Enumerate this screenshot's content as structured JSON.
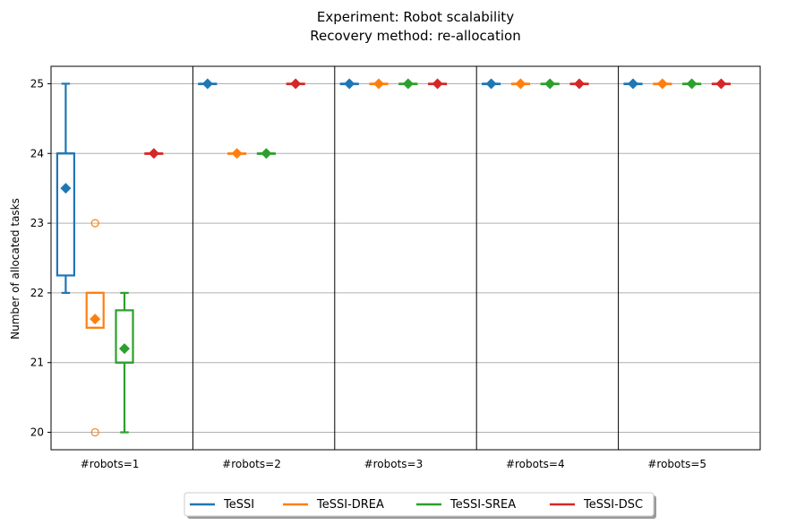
{
  "chart_data": {
    "type": "box",
    "title": "Experiment: Robot scalability",
    "subtitle": "Recovery method: re-allocation",
    "ylabel": "Number of allocated tasks",
    "xlabel": "",
    "ylim": [
      19.75,
      25.25
    ],
    "yticks": [
      20,
      21,
      22,
      23,
      24,
      25
    ],
    "grid": "y",
    "legend_position": "bottom-center",
    "groups": [
      "#robots=1",
      "#robots=2",
      "#robots=3",
      "#robots=4",
      "#robots=5"
    ],
    "series": [
      {
        "name": "TeSSI",
        "color": "#1f77b4",
        "stats": [
          {
            "whislo": 22,
            "q1": 22.25,
            "med": 24,
            "q3": 24,
            "whishi": 25,
            "mean": 23.5,
            "fliers": []
          },
          {
            "whislo": 25,
            "q1": 25,
            "med": 25,
            "q3": 25,
            "whishi": 25,
            "mean": 25,
            "fliers": []
          },
          {
            "whislo": 25,
            "q1": 25,
            "med": 25,
            "q3": 25,
            "whishi": 25,
            "mean": 25,
            "fliers": []
          },
          {
            "whislo": 25,
            "q1": 25,
            "med": 25,
            "q3": 25,
            "whishi": 25,
            "mean": 25,
            "fliers": []
          },
          {
            "whislo": 25,
            "q1": 25,
            "med": 25,
            "q3": 25,
            "whishi": 25,
            "mean": 25,
            "fliers": []
          }
        ]
      },
      {
        "name": "TeSSI-DREA",
        "color": "#ff7f0e",
        "stats": [
          {
            "whislo": 21.5,
            "q1": 21.5,
            "med": 22,
            "q3": 22,
            "whishi": 22,
            "mean": 21.625,
            "fliers": [
              23,
              20
            ]
          },
          {
            "whislo": 24,
            "q1": 24,
            "med": 24,
            "q3": 24,
            "whishi": 24,
            "mean": 24,
            "fliers": []
          },
          {
            "whislo": 25,
            "q1": 25,
            "med": 25,
            "q3": 25,
            "whishi": 25,
            "mean": 25,
            "fliers": []
          },
          {
            "whislo": 25,
            "q1": 25,
            "med": 25,
            "q3": 25,
            "whishi": 25,
            "mean": 25,
            "fliers": []
          },
          {
            "whislo": 25,
            "q1": 25,
            "med": 25,
            "q3": 25,
            "whishi": 25,
            "mean": 25,
            "fliers": []
          }
        ]
      },
      {
        "name": "TeSSI-SREA",
        "color": "#2ca02c",
        "stats": [
          {
            "whislo": 20,
            "q1": 21,
            "med": 21,
            "q3": 21.75,
            "whishi": 22,
            "mean": 21.2,
            "fliers": []
          },
          {
            "whislo": 24,
            "q1": 24,
            "med": 24,
            "q3": 24,
            "whishi": 24,
            "mean": 24,
            "fliers": []
          },
          {
            "whislo": 25,
            "q1": 25,
            "med": 25,
            "q3": 25,
            "whishi": 25,
            "mean": 25,
            "fliers": []
          },
          {
            "whislo": 25,
            "q1": 25,
            "med": 25,
            "q3": 25,
            "whishi": 25,
            "mean": 25,
            "fliers": []
          },
          {
            "whislo": 25,
            "q1": 25,
            "med": 25,
            "q3": 25,
            "whishi": 25,
            "mean": 25,
            "fliers": []
          }
        ]
      },
      {
        "name": "TeSSI-DSC",
        "color": "#d62728",
        "stats": [
          {
            "whislo": 24,
            "q1": 24,
            "med": 24,
            "q3": 24,
            "whishi": 24,
            "mean": 24,
            "fliers": []
          },
          {
            "whislo": 25,
            "q1": 25,
            "med": 25,
            "q3": 25,
            "whishi": 25,
            "mean": 25,
            "fliers": []
          },
          {
            "whislo": 25,
            "q1": 25,
            "med": 25,
            "q3": 25,
            "whishi": 25,
            "mean": 25,
            "fliers": []
          },
          {
            "whislo": 25,
            "q1": 25,
            "med": 25,
            "q3": 25,
            "whishi": 25,
            "mean": 25,
            "fliers": []
          },
          {
            "whislo": 25,
            "q1": 25,
            "med": 25,
            "q3": 25,
            "whishi": 25,
            "mean": 25,
            "fliers": []
          }
        ]
      }
    ]
  }
}
